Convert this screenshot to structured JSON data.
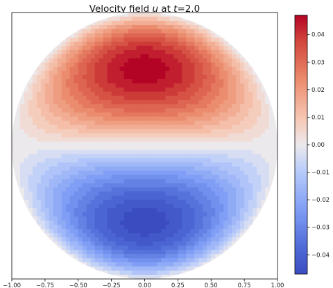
{
  "chart_data": {
    "type": "heatmap",
    "title": "Velocity field u at t=2.0",
    "title_parts": {
      "prefix": "Velocity field ",
      "var": "u",
      "mid": " at ",
      "tvar": "t",
      "suffix": "=2.0"
    },
    "xlabel": "",
    "ylabel": "",
    "domain": "unit disk",
    "xlim": [
      -1.0,
      1.0
    ],
    "ylim": [
      -1.0,
      1.0
    ],
    "x_ticks": [
      "−1.00",
      "−0.75",
      "−0.50",
      "−0.25",
      "0.00",
      "0.25",
      "0.50",
      "0.75",
      "1.00"
    ],
    "x_tick_values": [
      -1.0,
      -0.75,
      -0.5,
      -0.25,
      0.0,
      0.25,
      0.5,
      0.75,
      1.0
    ],
    "field": {
      "peak_positive": {
        "x": 0.0,
        "y": 0.55,
        "value": 0.047
      },
      "peak_negative": {
        "x": 0.0,
        "y": -0.55,
        "value": -0.047
      },
      "zero_line": "y = 0"
    },
    "colorbar": {
      "colormap": "coolwarm",
      "vmin": -0.047,
      "vmax": 0.047,
      "ticks": [
        "0.04",
        "0.03",
        "0.02",
        "0.01",
        "0.00",
        "−0.01",
        "−0.02",
        "−0.03",
        "−0.04"
      ],
      "tick_values": [
        0.04,
        0.03,
        0.02,
        0.01,
        0.0,
        -0.01,
        -0.02,
        -0.03,
        -0.04
      ]
    },
    "grid": false,
    "legend": "none"
  }
}
